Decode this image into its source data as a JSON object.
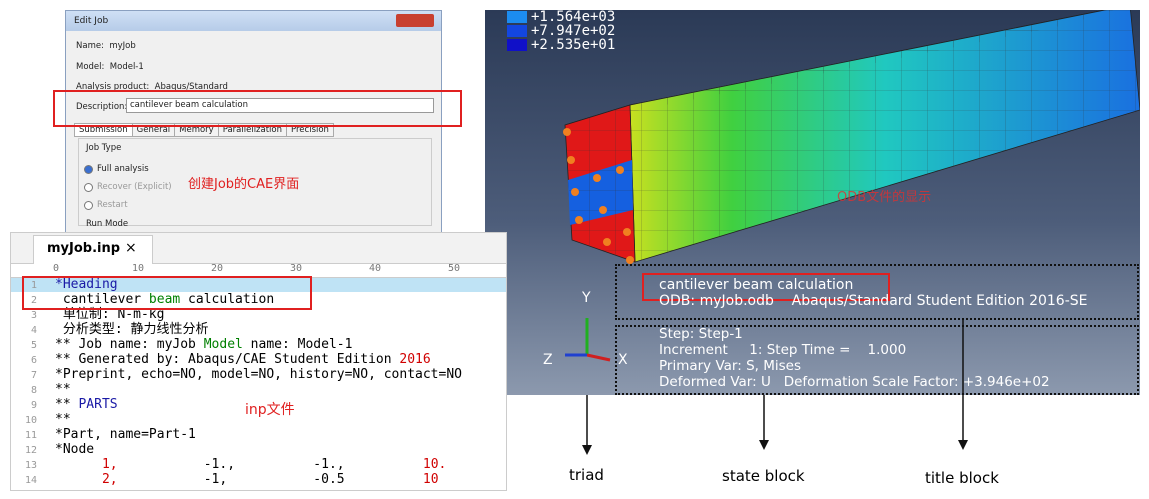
{
  "dialog": {
    "title": "Edit Job",
    "name": "Name:  myJob",
    "model": "Model:  Model-1",
    "product": "Analysis product:  Abaqus/Standard",
    "description_label": "Description:",
    "description": "cantilever beam calculation",
    "tabs": [
      "Submission",
      "General",
      "Memory",
      "Parallelization",
      "Precision"
    ],
    "job_type": "Job Type",
    "options": [
      "Full analysis",
      "Recover (Explicit)",
      "Restart"
    ],
    "run_mode": "Run Mode",
    "annotation": "创建Job的CAE界面"
  },
  "editor": {
    "tab": "myJob.inp",
    "close": "×",
    "ruler": [
      "0",
      "10",
      "20",
      "30",
      "40",
      "50"
    ],
    "annotation": "inp文件",
    "lines": [
      {
        "no": "1",
        "parts": [
          {
            "text": "*Heading",
            "color": "#1a1aa6"
          }
        ]
      },
      {
        "no": "2",
        "parts": [
          {
            "text": " cantilever ",
            "color": "#000000"
          },
          {
            "text": "beam",
            "color": "#008000"
          },
          {
            "text": " calculation",
            "color": "#000000"
          }
        ]
      },
      {
        "no": "3",
        "parts": [
          {
            "text": " 单位制: N-m-kg",
            "color": "#000000"
          }
        ]
      },
      {
        "no": "4",
        "parts": [
          {
            "text": " 分析类型: 静力线性分析",
            "color": "#000000"
          }
        ]
      },
      {
        "no": "5",
        "parts": [
          {
            "text": "** Job name: myJob ",
            "color": "#000000"
          },
          {
            "text": "Model",
            "color": "#008000"
          },
          {
            "text": " name: Model-1",
            "color": "#000000"
          }
        ]
      },
      {
        "no": "6",
        "parts": [
          {
            "text": "** Generated by: Abaqus/CAE Student Edition ",
            "color": "#000000"
          },
          {
            "text": "2016",
            "color": "#d00000"
          }
        ]
      },
      {
        "no": "7",
        "parts": [
          {
            "text": "*Preprint, echo=NO, model=NO, history=NO, contact=NO",
            "color": "#000000"
          }
        ]
      },
      {
        "no": "8",
        "parts": [
          {
            "text": "**",
            "color": "#000000"
          }
        ]
      },
      {
        "no": "9",
        "parts": [
          {
            "text": "** ",
            "color": "#000000"
          },
          {
            "text": "PARTS",
            "color": "#1a1aa6"
          }
        ]
      },
      {
        "no": "10",
        "parts": [
          {
            "text": "**",
            "color": "#000000"
          }
        ]
      },
      {
        "no": "11",
        "parts": [
          {
            "text": "*Part, name=Part-1",
            "color": "#000000"
          }
        ]
      },
      {
        "no": "12",
        "parts": [
          {
            "text": "*Node",
            "color": "#000000"
          }
        ]
      },
      {
        "no": "13",
        "parts": [
          {
            "text": "      1,",
            "color": "#d00000"
          },
          {
            "text": "           -1.,          -1.,",
            "color": "#000000"
          },
          {
            "text": "          10.",
            "color": "#d00000"
          }
        ]
      },
      {
        "no": "14",
        "parts": [
          {
            "text": "      2,",
            "color": "#d00000"
          },
          {
            "text": "           -1,           -0.5",
            "color": "#000000"
          },
          {
            "text": "          10",
            "color": "#d00000"
          }
        ]
      }
    ]
  },
  "viewport": {
    "legend": [
      {
        "label": "+1.564e+03",
        "color": "#1c8cf0"
      },
      {
        "label": "+7.947e+02",
        "color": "#1346e0"
      },
      {
        "label": "+2.535e+01",
        "color": "#1010c8"
      }
    ],
    "title_block": [
      "cantilever beam calculation",
      "ODB: myJob.odb    Abaqus/Standard Student Edition 2016-SE"
    ],
    "state_block": [
      "Step: Step-1",
      "Increment     1: Step Time =    1.000",
      "Primary Var: S, Mises",
      "Deformed Var: U   Deformation Scale Factor: +3.946e+02"
    ],
    "triad": [
      "Y",
      "Z",
      "X"
    ],
    "annotation": "ODB文件的显示"
  },
  "callouts": [
    "triad",
    "state block",
    "title block"
  ]
}
